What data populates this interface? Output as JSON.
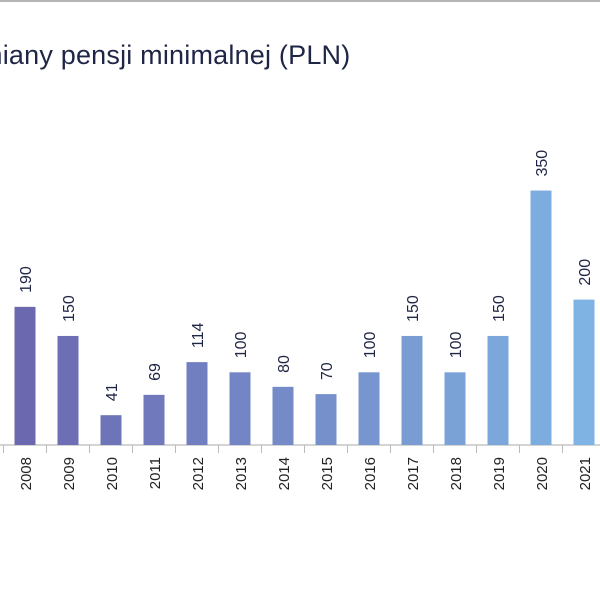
{
  "chart_data": {
    "type": "bar",
    "title": "miany pensji minimalnej (PLN)",
    "categories": [
      "2008",
      "2009",
      "2010",
      "2011",
      "2012",
      "2013",
      "2014",
      "2015",
      "2016",
      "2017",
      "2018",
      "2019",
      "2020",
      "2021"
    ],
    "values": [
      190,
      150,
      41,
      69,
      114,
      100,
      80,
      70,
      100,
      150,
      100,
      150,
      350,
      200
    ],
    "value_labels": [
      "190",
      "150",
      "41",
      "69",
      "114",
      "100",
      "80",
      "70",
      "100",
      "150",
      "100",
      "150",
      "350",
      "200"
    ],
    "ylim": [
      0,
      400
    ],
    "xlabel": "",
    "ylabel": "",
    "grid": false,
    "legend": "none",
    "colors": {
      "bar_start": "#6b68b0",
      "bar_end": "#7fb3e3",
      "label": "#1f2545",
      "axis": "#222222"
    }
  }
}
